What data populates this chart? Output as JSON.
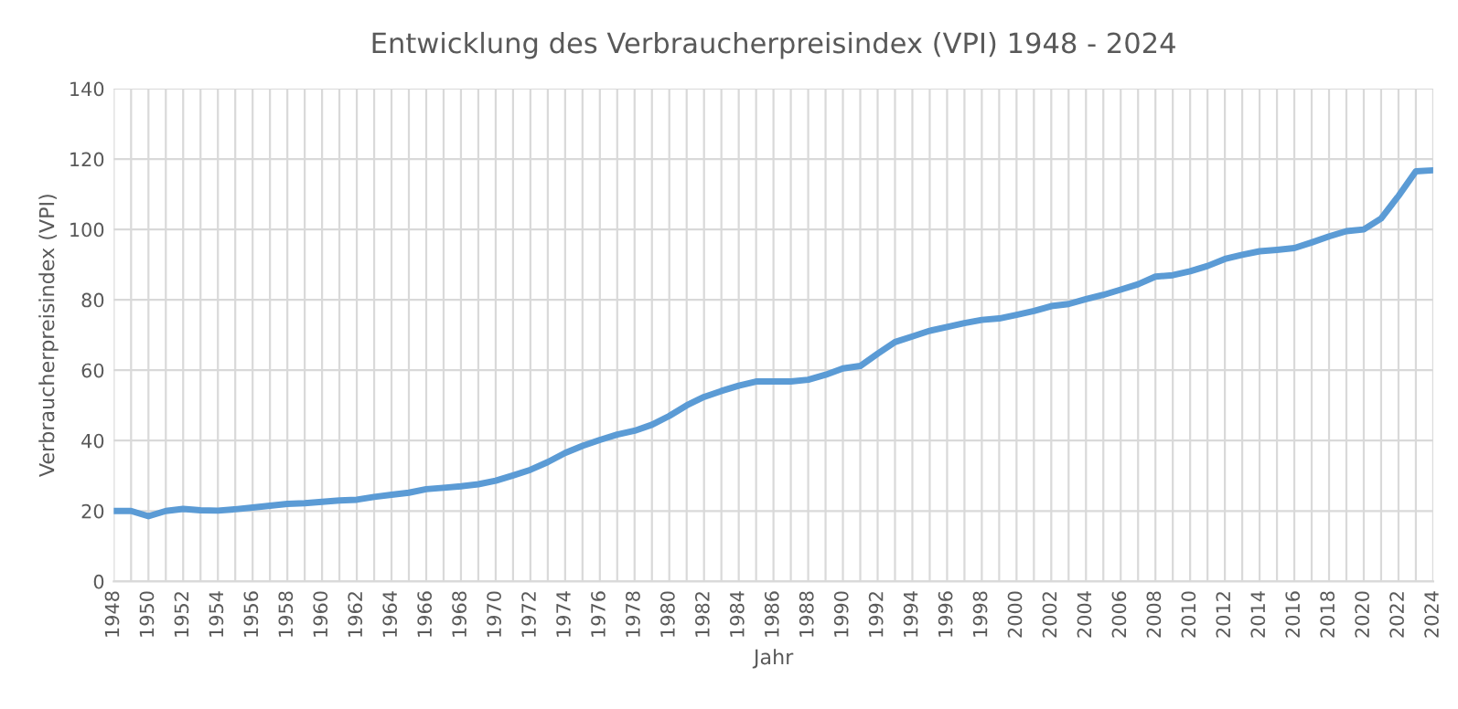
{
  "chart_data": {
    "type": "line",
    "title": "Entwicklung des Verbraucherpreisindex (VPI) 1948 - 2024",
    "xlabel": "Jahr",
    "ylabel": "Verbraucherpreisindex (VPI)",
    "categories": [
      "1948",
      null,
      "1950",
      null,
      "1952",
      null,
      "1954",
      null,
      "1956",
      null,
      "1958",
      null,
      "1960",
      null,
      "1962",
      null,
      "1964",
      null,
      "1966",
      null,
      "1968",
      null,
      "1970",
      null,
      "1972",
      null,
      "1974",
      null,
      "1976",
      null,
      "1978",
      null,
      "1980",
      null,
      "1982",
      null,
      "1984",
      null,
      "1986",
      null,
      "1988",
      null,
      "1990",
      null,
      "1992",
      null,
      "1994",
      null,
      "1996",
      null,
      "1998",
      null,
      "2000",
      null,
      "2002",
      null,
      "2004",
      null,
      "2006",
      null,
      "2008",
      null,
      "2010",
      null,
      "2012",
      null,
      "2014",
      null,
      "2016",
      null,
      "2018",
      null,
      "2020",
      null,
      "2022",
      null,
      "2024"
    ],
    "series": [
      {
        "color": "#5b9bd5",
        "values": [
          20.0,
          20.0,
          18.5,
          20.0,
          20.6,
          20.2,
          20.1,
          20.5,
          21.0,
          21.5,
          22.0,
          22.2,
          22.6,
          23.0,
          23.2,
          24.0,
          24.6,
          25.2,
          26.2,
          26.6,
          27.0,
          27.6,
          28.6,
          30.1,
          31.7,
          33.9,
          36.5,
          38.5,
          40.2,
          41.7,
          42.8,
          44.5,
          47.0,
          50.0,
          52.4,
          54.1,
          55.6,
          56.8,
          56.8,
          56.8,
          57.3,
          58.7,
          60.5,
          61.2,
          64.7,
          68.0,
          69.6,
          71.2,
          72.3,
          73.4,
          74.3,
          74.7,
          75.7,
          76.8,
          78.2,
          78.8,
          80.2,
          81.4,
          82.9,
          84.4,
          86.6,
          87.0,
          88.1,
          89.6,
          91.6,
          92.8,
          93.8,
          94.2,
          94.7,
          96.3,
          98.0,
          99.5,
          100.0,
          103.1,
          109.5,
          116.5,
          116.8
        ]
      }
    ],
    "ylim": [
      0,
      140
    ],
    "yticks": [
      0,
      20,
      40,
      60,
      80,
      100,
      120,
      140
    ],
    "grid": true,
    "legend": false,
    "marker": "none",
    "line_style": "solid"
  }
}
